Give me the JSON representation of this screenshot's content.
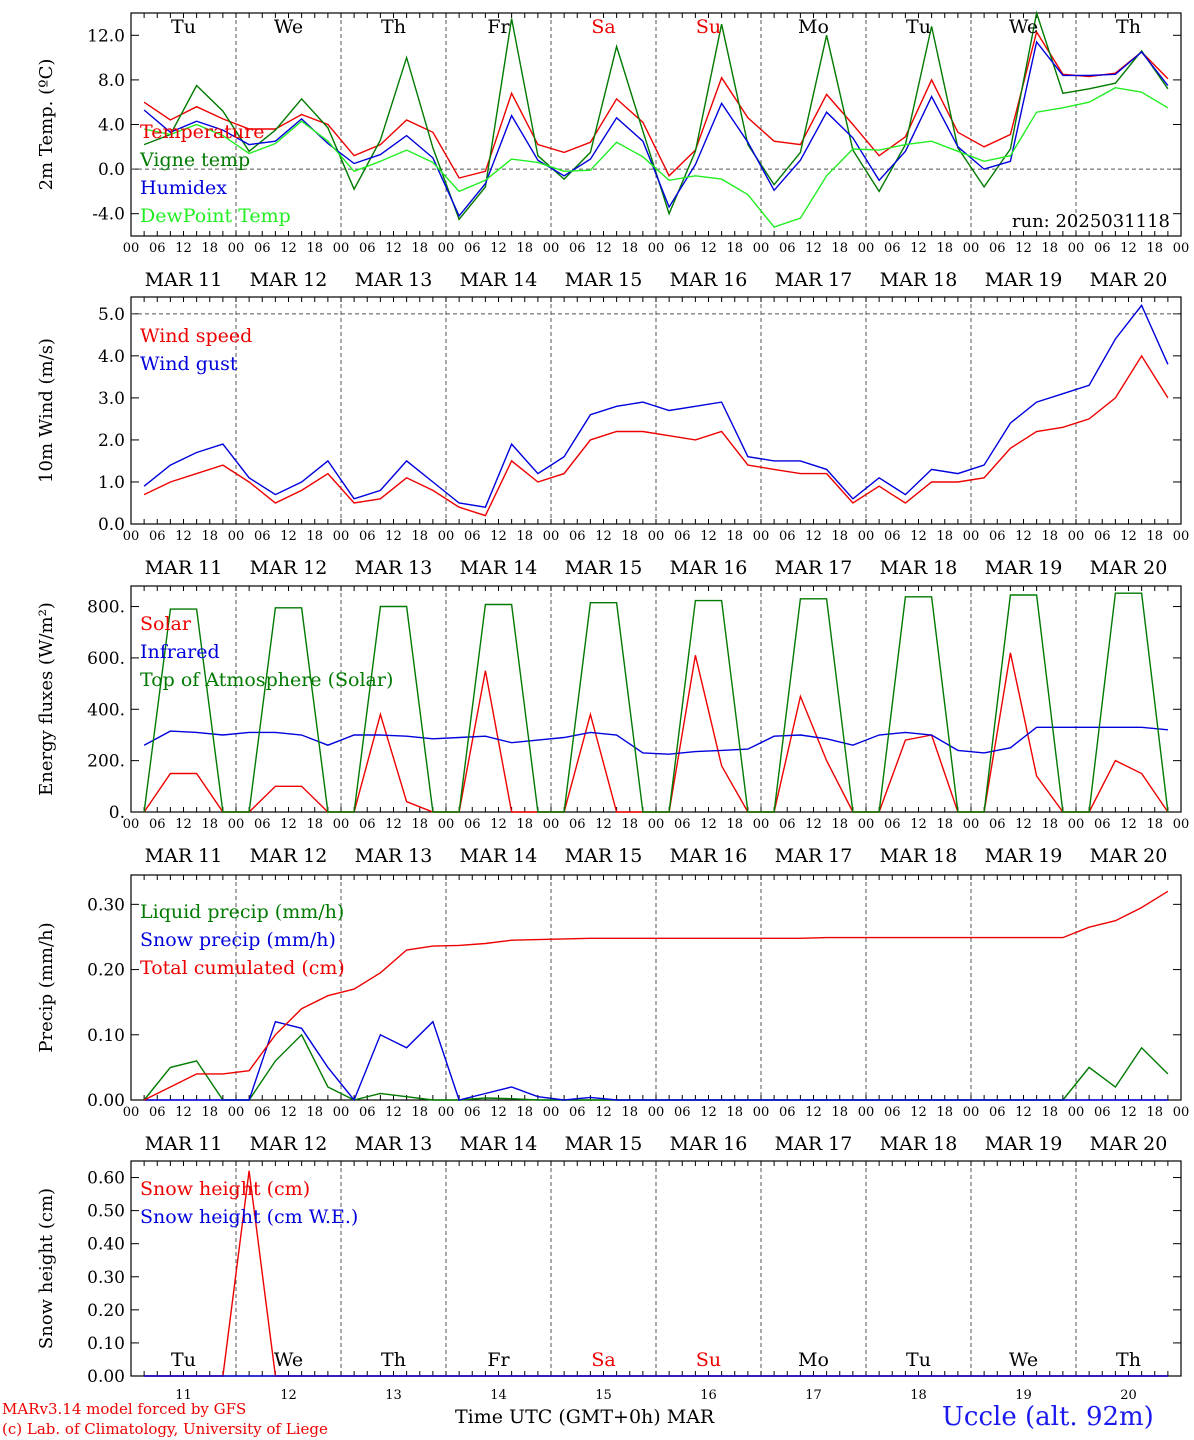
{
  "x_axis": {
    "days": [
      "MAR 11",
      "MAR 12",
      "MAR 13",
      "MAR 14",
      "MAR 15",
      "MAR 16",
      "MAR 17",
      "MAR 18",
      "MAR 19",
      "MAR 20"
    ],
    "hours": [
      "00",
      "06",
      "12",
      "18"
    ],
    "end_hour": "00",
    "weekdays": [
      "Tu",
      "We",
      "Th",
      "Fr",
      "Sa",
      "Su",
      "Mo",
      "Tu",
      "We",
      "Th"
    ],
    "weekend_index": [
      4,
      5
    ],
    "day_numbers": [
      "11",
      "12",
      "13",
      "14",
      "15",
      "16",
      "17",
      "18",
      "19",
      "20"
    ],
    "label": "Time UTC (GMT+0h)",
    "month": "MAR"
  },
  "colors": {
    "red": "#ee0000",
    "green": "#007a00",
    "blue": "#0000dd",
    "lightgreen": "#22ee22",
    "grid": "#555555"
  },
  "footer": {
    "model": "MARv3.14 model forced by GFS",
    "lab": "(c) Lab. of Climatology, University of Liege",
    "station": "Uccle (alt. 92m)"
  },
  "chart_data": [
    {
      "id": "temp",
      "type": "line",
      "ylabel": "2m Temp. (ºC)",
      "ylim": [
        -6,
        14
      ],
      "ticks": [
        -4,
        0,
        4,
        8,
        12
      ],
      "tick_labels": [
        "-4.0",
        "0.0",
        "4.0",
        "8.0",
        "12.0"
      ],
      "dashed_y": [
        0
      ],
      "run_label": "run: 2025031118",
      "series": [
        {
          "name": "Temperature",
          "color": "red",
          "values": [
            6.0,
            4.4,
            5.6,
            4.5,
            3.6,
            3.6,
            4.9,
            4.0,
            1.2,
            2.2,
            4.4,
            3.3,
            -0.8,
            -0.2,
            6.8,
            2.2,
            1.5,
            2.4,
            6.3,
            4.2,
            -0.6,
            1.7,
            8.2,
            4.6,
            2.5,
            2.2,
            6.7,
            4.0,
            1.2,
            2.9,
            8.0,
            3.3,
            2.0,
            3.1,
            12.3,
            8.5,
            8.3,
            8.6,
            10.5,
            8.1
          ]
        },
        {
          "name": "Vigne temp",
          "color": "green",
          "values": [
            2.2,
            3.1,
            7.5,
            5.2,
            1.6,
            3.5,
            6.3,
            3.7,
            -1.8,
            2.6,
            10.0,
            1.9,
            -4.5,
            -1.6,
            13.5,
            1.2,
            -0.9,
            1.5,
            11.0,
            3.4,
            -4.0,
            1.6,
            13.0,
            2.2,
            -1.4,
            1.5,
            12.0,
            1.7,
            -2.0,
            2.2,
            12.8,
            1.9,
            -1.6,
            1.8,
            14.0,
            6.8,
            7.2,
            7.7,
            10.6,
            7.2
          ]
        },
        {
          "name": "Humidex",
          "color": "blue",
          "values": [
            5.3,
            3.3,
            4.3,
            3.5,
            2.2,
            2.5,
            4.5,
            2.3,
            0.5,
            1.3,
            3.0,
            1.0,
            -4.2,
            -1.3,
            4.8,
            0.8,
            -0.6,
            0.9,
            4.6,
            2.5,
            -3.4,
            0.4,
            5.9,
            2.4,
            -1.9,
            0.8,
            5.1,
            2.8,
            -1.0,
            1.6,
            6.5,
            2.0,
            0.0,
            0.7,
            11.4,
            8.4,
            8.4,
            8.5,
            10.5,
            7.5
          ]
        },
        {
          "name": "DewPoint Temp",
          "color": "lightgreen",
          "values": [
            3.6,
            3.1,
            4.0,
            3.0,
            1.4,
            2.3,
            4.3,
            2.5,
            -0.2,
            0.7,
            1.7,
            0.6,
            -2.0,
            -1.0,
            0.9,
            0.6,
            -0.2,
            -0.1,
            2.4,
            1.1,
            -1.0,
            -0.6,
            -0.9,
            -2.3,
            -5.2,
            -4.4,
            -0.6,
            1.8,
            1.7,
            2.2,
            2.5,
            1.6,
            0.7,
            1.2,
            5.1,
            5.5,
            6.0,
            7.3,
            6.9,
            5.5
          ]
        }
      ]
    },
    {
      "id": "wind",
      "type": "line",
      "ylabel": "10m Wind (m/s)",
      "ylim": [
        0,
        5.4
      ],
      "ticks": [
        0,
        1,
        2,
        3,
        4,
        5
      ],
      "tick_labels": [
        "0.0",
        "1.0",
        "2.0",
        "3.0",
        "4.0",
        "5.0"
      ],
      "dashed_y": [
        5
      ],
      "series": [
        {
          "name": "Wind speed",
          "color": "red",
          "values": [
            0.7,
            1.0,
            1.2,
            1.4,
            1.0,
            0.5,
            0.8,
            1.2,
            0.5,
            0.6,
            1.1,
            0.8,
            0.4,
            0.2,
            1.5,
            1.0,
            1.2,
            2.0,
            2.2,
            2.2,
            2.1,
            2.0,
            2.2,
            1.4,
            1.3,
            1.2,
            1.2,
            0.5,
            0.9,
            0.5,
            1.0,
            1.0,
            1.1,
            1.8,
            2.2,
            2.3,
            2.5,
            3.0,
            4.0,
            3.0
          ]
        },
        {
          "name": "Wind gust",
          "color": "blue",
          "values": [
            0.9,
            1.4,
            1.7,
            1.9,
            1.1,
            0.7,
            1.0,
            1.5,
            0.6,
            0.8,
            1.5,
            1.0,
            0.5,
            0.4,
            1.9,
            1.2,
            1.6,
            2.6,
            2.8,
            2.9,
            2.7,
            2.8,
            2.9,
            1.6,
            1.5,
            1.5,
            1.3,
            0.6,
            1.1,
            0.7,
            1.3,
            1.2,
            1.4,
            2.4,
            2.9,
            3.1,
            3.3,
            4.4,
            5.2,
            3.8
          ]
        }
      ]
    },
    {
      "id": "energy",
      "type": "line",
      "ylabel": "Energy fluxes (W/m²)",
      "ylim": [
        0,
        880
      ],
      "ticks": [
        0,
        200,
        400,
        600,
        800
      ],
      "tick_labels": [
        "0.",
        "200.",
        "400.",
        "600.",
        "800."
      ],
      "dashed_y": [],
      "series": [
        {
          "name": "Solar",
          "color": "red",
          "values": [
            0,
            150,
            150,
            0,
            0,
            100,
            100,
            0,
            0,
            380,
            40,
            0,
            0,
            550,
            0,
            0,
            0,
            380,
            0,
            0,
            0,
            610,
            180,
            0,
            0,
            450,
            200,
            0,
            0,
            280,
            300,
            0,
            0,
            620,
            140,
            0,
            0,
            200,
            150,
            0
          ]
        },
        {
          "name": "Infrared",
          "color": "blue",
          "values": [
            260,
            315,
            310,
            300,
            310,
            310,
            300,
            260,
            300,
            300,
            295,
            285,
            290,
            295,
            270,
            280,
            290,
            310,
            300,
            230,
            225,
            235,
            240,
            245,
            295,
            300,
            285,
            260,
            300,
            310,
            300,
            240,
            230,
            250,
            330,
            330,
            330,
            330,
            330,
            320
          ]
        },
        {
          "name": "Top of Atmosphere (Solar)",
          "color": "green",
          "values": [
            0,
            790,
            790,
            0,
            0,
            795,
            795,
            0,
            0,
            800,
            800,
            0,
            0,
            808,
            808,
            0,
            0,
            815,
            815,
            0,
            0,
            823,
            823,
            0,
            0,
            830,
            830,
            0,
            0,
            838,
            838,
            0,
            0,
            845,
            845,
            0,
            0,
            852,
            852,
            0
          ]
        }
      ]
    },
    {
      "id": "precip",
      "type": "line",
      "ylabel": "Precip (mm/h)",
      "ylim": [
        0,
        0.345
      ],
      "ticks": [
        0,
        0.1,
        0.2,
        0.3
      ],
      "tick_labels": [
        "0.00",
        "0.10",
        "0.20",
        "0.30"
      ],
      "dashed_y": [],
      "series": [
        {
          "name": "Liquid precip (mm/h)",
          "color": "green",
          "values": [
            0,
            0.05,
            0.06,
            0,
            0,
            0.06,
            0.1,
            0.02,
            0,
            0.01,
            0.005,
            0,
            0,
            0.003,
            0.002,
            0,
            0,
            0,
            0,
            0,
            0,
            0,
            0,
            0,
            0,
            0,
            0,
            0,
            0,
            0,
            0,
            0,
            0,
            0,
            0,
            0,
            0.05,
            0.02,
            0.08,
            0.04
          ]
        },
        {
          "name": "Snow precip (mm/h)",
          "color": "blue",
          "values": [
            0,
            0,
            0,
            0,
            0,
            0.12,
            0.11,
            0.05,
            0,
            0.1,
            0.08,
            0.12,
            0,
            0.01,
            0.02,
            0.005,
            0,
            0.004,
            0,
            0,
            0,
            0,
            0,
            0,
            0,
            0,
            0,
            0,
            0,
            0,
            0,
            0,
            0,
            0,
            0,
            0,
            0,
            0,
            0,
            0
          ]
        },
        {
          "name": "Total cumulated (cm)",
          "color": "red",
          "values": [
            0,
            0.02,
            0.04,
            0.04,
            0.045,
            0.1,
            0.14,
            0.16,
            0.17,
            0.195,
            0.23,
            0.236,
            0.237,
            0.24,
            0.245,
            0.246,
            0.247,
            0.248,
            0.248,
            0.248,
            0.248,
            0.248,
            0.248,
            0.248,
            0.248,
            0.248,
            0.249,
            0.249,
            0.249,
            0.249,
            0.249,
            0.249,
            0.249,
            0.249,
            0.249,
            0.249,
            0.265,
            0.275,
            0.295,
            0.32
          ]
        }
      ]
    },
    {
      "id": "snow",
      "type": "line",
      "ylabel": "Snow height (cm)",
      "ylim": [
        0,
        0.65
      ],
      "ticks": [
        0,
        0.1,
        0.2,
        0.3,
        0.4,
        0.5,
        0.6
      ],
      "tick_labels": [
        "0.00",
        "0.10",
        "0.20",
        "0.30",
        "0.40",
        "0.50",
        "0.60"
      ],
      "dashed_y": [],
      "series": [
        {
          "name": "Snow height (cm)",
          "color": "red",
          "values": [
            0,
            0,
            0,
            0,
            0.62,
            0,
            0,
            0,
            0,
            0,
            0,
            0,
            0,
            0,
            0,
            0,
            0,
            0,
            0,
            0,
            0,
            0,
            0,
            0,
            0,
            0,
            0,
            0,
            0,
            0,
            0,
            0,
            0,
            0,
            0,
            0,
            0,
            0,
            0,
            0
          ]
        },
        {
          "name": "Snow height (cm W.E.)",
          "color": "blue",
          "values": [
            0,
            0,
            0,
            0,
            0,
            0,
            0,
            0,
            0,
            0,
            0,
            0,
            0,
            0,
            0,
            0,
            0,
            0,
            0,
            0,
            0,
            0,
            0,
            0,
            0,
            0,
            0,
            0,
            0,
            0,
            0,
            0,
            0,
            0,
            0,
            0,
            0,
            0,
            0,
            0
          ]
        }
      ]
    }
  ]
}
